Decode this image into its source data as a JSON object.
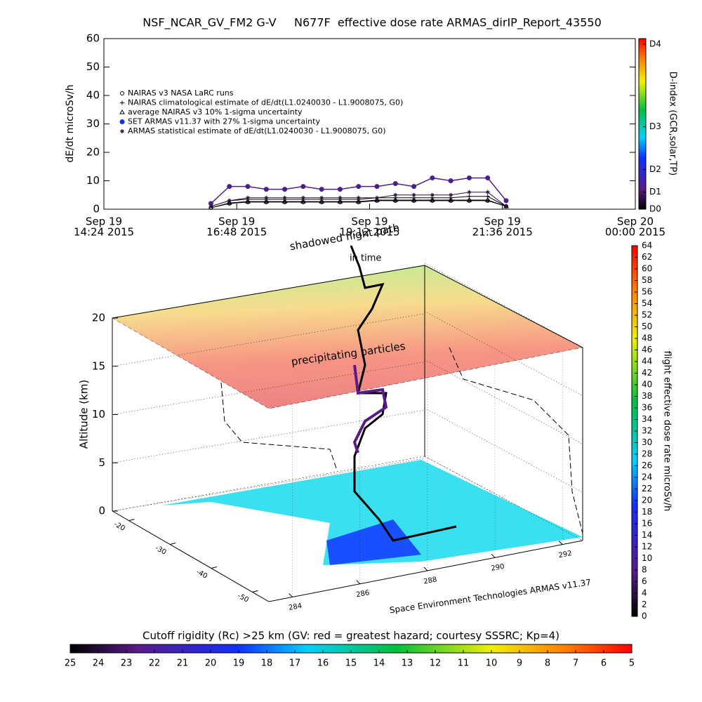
{
  "chart_data": [
    {
      "type": "line",
      "title": "NSF_NCAR_GV_FM2 G-V     N677F  effective dose rate ARMAS_dirIP_Report_43550",
      "y_label": "dE/dt microSv/h",
      "ylim": [
        0,
        60
      ],
      "yticks": [
        0,
        10,
        20,
        30,
        40,
        50,
        60
      ],
      "xlim": [
        "2015-09-19T14:24",
        "2015-09-20T00:00"
      ],
      "xticks": [
        {
          "value": "2015-09-19T14:24",
          "label": [
            "Sep 19",
            "14:24 2015"
          ]
        },
        {
          "value": "2015-09-19T16:48",
          "label": [
            "Sep 19",
            "16:48 2015"
          ]
        },
        {
          "value": "2015-09-19T19:12",
          "label": [
            "Sep 19",
            "19:12 2015"
          ]
        },
        {
          "value": "2015-09-19T21:36",
          "label": [
            "Sep 19",
            "21:36 2015"
          ]
        },
        {
          "value": "2015-09-20T00:00",
          "label": [
            "Sep 20",
            "00:00 2015"
          ]
        }
      ],
      "x": [
        "2015-09-19T16:20",
        "2015-09-19T16:40",
        "2015-09-19T17:00",
        "2015-09-19T17:20",
        "2015-09-19T17:40",
        "2015-09-19T18:00",
        "2015-09-19T18:20",
        "2015-09-19T18:40",
        "2015-09-19T19:00",
        "2015-09-19T19:20",
        "2015-09-19T19:40",
        "2015-09-19T20:00",
        "2015-09-19T20:20",
        "2015-09-19T20:40",
        "2015-09-19T21:00",
        "2015-09-19T21:20",
        "2015-09-19T21:40"
      ],
      "series": [
        {
          "name": "NAIRAS v3 NASA LaRC runs",
          "marker": "circle",
          "color": "#000000",
          "values": [
            0.5,
            2,
            2.5,
            2.5,
            2.5,
            2.5,
            2.5,
            2.5,
            2.5,
            3,
            3,
            3,
            3,
            3,
            3,
            3,
            1
          ]
        },
        {
          "name": "NAIRAS climatological estimate of dE/dt(L1.0240030 - L1.9008075, G0)",
          "marker": "plus",
          "color": "#000000",
          "values": [
            1,
            3,
            3.5,
            3.5,
            3.5,
            3.5,
            3.5,
            3.5,
            3.5,
            4,
            4,
            4,
            4,
            4,
            4.5,
            4.5,
            1
          ]
        },
        {
          "name": "average NAIRAS v3 10% 1-sigma uncertainty",
          "marker": "triangle",
          "color": "#000000",
          "values": [
            0.5,
            2.2,
            2.7,
            2.7,
            2.7,
            2.7,
            2.7,
            2.7,
            2.7,
            3.2,
            3.2,
            3.2,
            3.2,
            3.2,
            3.2,
            3.2,
            1
          ]
        },
        {
          "name": "SET ARMAS v11.37 with 27% 1-sigma uncertainty",
          "marker": "dot",
          "color": "#4b1f8a",
          "values": [
            2,
            8,
            8,
            7,
            7,
            8,
            7,
            7,
            8,
            8,
            9,
            8,
            11,
            10,
            11,
            11,
            3
          ]
        },
        {
          "name": "ARMAS statistical estimate of dE/dt(L1.0240030 - L1.9008075, G0)",
          "marker": "star",
          "color": "#2a1040",
          "values": [
            1,
            3,
            4,
            4,
            4,
            4,
            4,
            4,
            4,
            4,
            5,
            5,
            5,
            5,
            6,
            6,
            1
          ]
        }
      ],
      "colorbar": {
        "label": "D-index (GCR,solar,TP)",
        "lim": [
          0,
          60
        ],
        "ticks": [
          {
            "value": 0,
            "label": "D0"
          },
          {
            "value": 6,
            "label": "D1"
          },
          {
            "value": 14,
            "label": "D2"
          },
          {
            "value": 29,
            "label": "D3"
          },
          {
            "value": 58,
            "label": "D4"
          }
        ]
      }
    },
    {
      "type": "surface3d",
      "z_label": "Altitude (km)",
      "zlim": [
        0,
        20
      ],
      "zticks": [
        0,
        5,
        10,
        15,
        20
      ],
      "ylim": [
        -16,
        -54
      ],
      "yticks": [
        -20,
        -30,
        -40,
        -50
      ],
      "xlim": [
        283.3,
        292.6
      ],
      "xticks": [
        284,
        286,
        288,
        290,
        292
      ],
      "annotations": [
        "shadowed flight path",
        "in time",
        "precipitating particles",
        "Space Environment Technologies ARMAS v11.37"
      ],
      "colorbar": {
        "label": "flight effective dose rate microSv/h",
        "lim": [
          0,
          64
        ],
        "ticks": [
          0,
          2,
          4,
          6,
          8,
          10,
          12,
          14,
          16,
          18,
          20,
          22,
          24,
          26,
          28,
          30,
          32,
          34,
          36,
          38,
          40,
          42,
          44,
          46,
          48,
          50,
          52,
          54,
          56,
          58,
          60,
          62,
          64
        ]
      }
    },
    {
      "type": "colorbar",
      "title": "Cutoff rigidity (Rc) >25 km (GV: red = greatest hazard; courtesy SSSRC; Kp=4)",
      "lim": [
        25,
        5
      ],
      "ticks": [
        25,
        24,
        23,
        22,
        21,
        20,
        19,
        18,
        17,
        16,
        15,
        14,
        13,
        12,
        11,
        10,
        9,
        8,
        7,
        6,
        5
      ]
    }
  ]
}
